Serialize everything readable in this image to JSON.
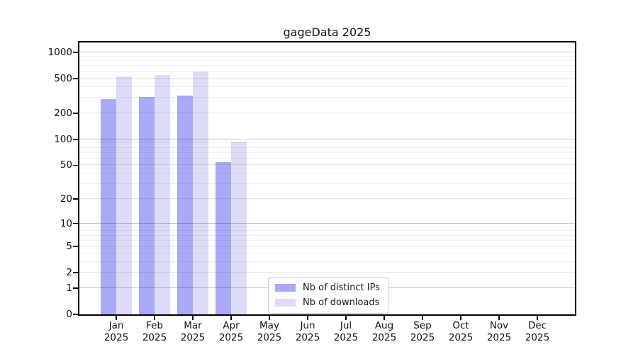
{
  "chart_data": {
    "type": "bar",
    "title": "gageData 2025",
    "y_axis": {
      "scale": "log10(1+value)",
      "ticks": [
        0,
        1,
        2,
        5,
        10,
        20,
        50,
        100,
        200,
        500,
        1000
      ],
      "minor_ticks": [
        3,
        4,
        6,
        7,
        8,
        9,
        30,
        40,
        60,
        70,
        80,
        90,
        300,
        400,
        600,
        700,
        800,
        900
      ],
      "range_max": 1000,
      "grid": "on"
    },
    "categories": [
      {
        "month": "Jan",
        "year": "2025"
      },
      {
        "month": "Feb",
        "year": "2025"
      },
      {
        "month": "Mar",
        "year": "2025"
      },
      {
        "month": "Apr",
        "year": "2025"
      },
      {
        "month": "May",
        "year": "2025"
      },
      {
        "month": "Jun",
        "year": "2025"
      },
      {
        "month": "Jul",
        "year": "2025"
      },
      {
        "month": "Aug",
        "year": "2025"
      },
      {
        "month": "Sep",
        "year": "2025"
      },
      {
        "month": "Oct",
        "year": "2025"
      },
      {
        "month": "Nov",
        "year": "2025"
      },
      {
        "month": "Dec",
        "year": "2025"
      }
    ],
    "series": [
      {
        "name": "Nb of distinct IPs",
        "color": "#a9a9f5",
        "values": [
          290,
          310,
          322,
          54,
          0,
          0,
          0,
          0,
          0,
          0,
          0,
          0
        ]
      },
      {
        "name": "Nb of downloads",
        "color": "#dcdcf8",
        "values": [
          535,
          555,
          600,
          95,
          0,
          0,
          0,
          0,
          0,
          0,
          0,
          0
        ]
      }
    ],
    "legend": {
      "position": "inside-bottom-center"
    }
  }
}
